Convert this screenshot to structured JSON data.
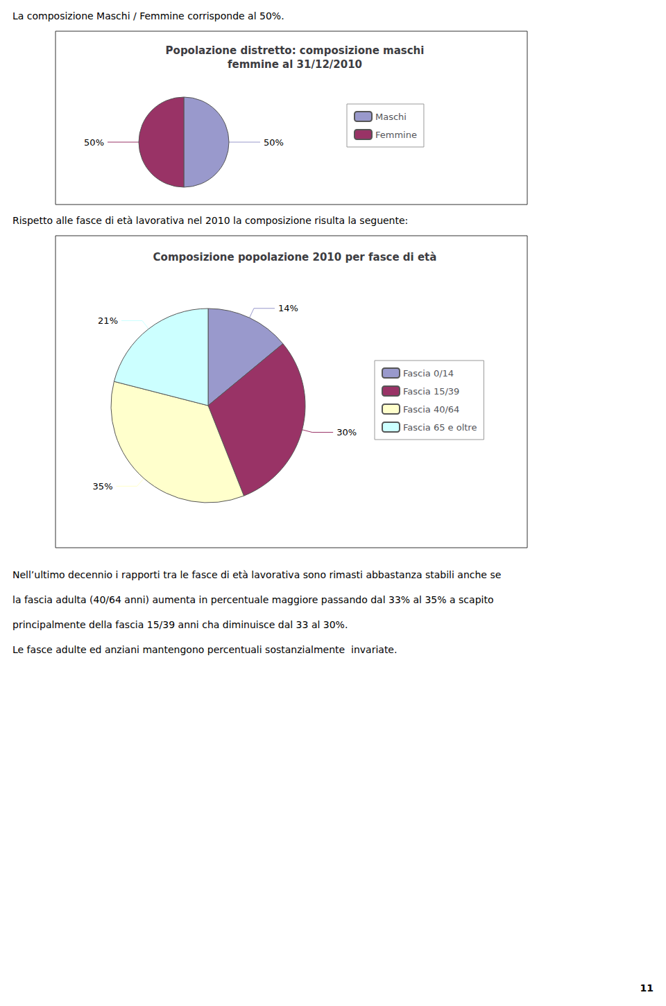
{
  "chart_data": [
    {
      "type": "pie",
      "title": "Popolazione distretto: composizione maschi\nfemmine al 31/12/2010",
      "categories": [
        "Maschi",
        "Femmine"
      ],
      "values": [
        50,
        50
      ],
      "value_labels": [
        "50%",
        "50%"
      ],
      "colors": [
        "#9999CC",
        "#993366"
      ],
      "data_labels": true,
      "legend": "right"
    },
    {
      "type": "pie",
      "title": "Composizione popolazione 2010 per fasce di età",
      "categories": [
        "Fascia 0/14",
        "Fascia 15/39",
        "Fascia 40/64",
        "Fascia 65 e oltre"
      ],
      "values": [
        14,
        30,
        35,
        21
      ],
      "value_labels": [
        "14%",
        "30%",
        "35%",
        "21%"
      ],
      "colors": [
        "#9999CC",
        "#993366",
        "#FFFFCC",
        "#CCFFFF"
      ],
      "data_labels": true,
      "legend": "right"
    }
  ],
  "annotations": [
    "La composizione Maschi / Femmine corrisponde al 50%.",
    "Rispetto alle fasce di età lavorativa nel 2010 la composizione risulta la seguente:",
    "Nell’ultimo decennio i rapporti tra le fasce di età lavorativa sono rimasti abbastanza stabili anche se",
    "la fascia adulta (40/64 anni) aumenta in percentuale maggiore passando dal 33% al 35% a scapito",
    "principalmente della fascia 15/39 anni cha diminuisce dal 33 al 30%.",
    "Le fasce adulte ed anziani mantengono percentuali sostanzialmente  invariate.",
    "11"
  ]
}
